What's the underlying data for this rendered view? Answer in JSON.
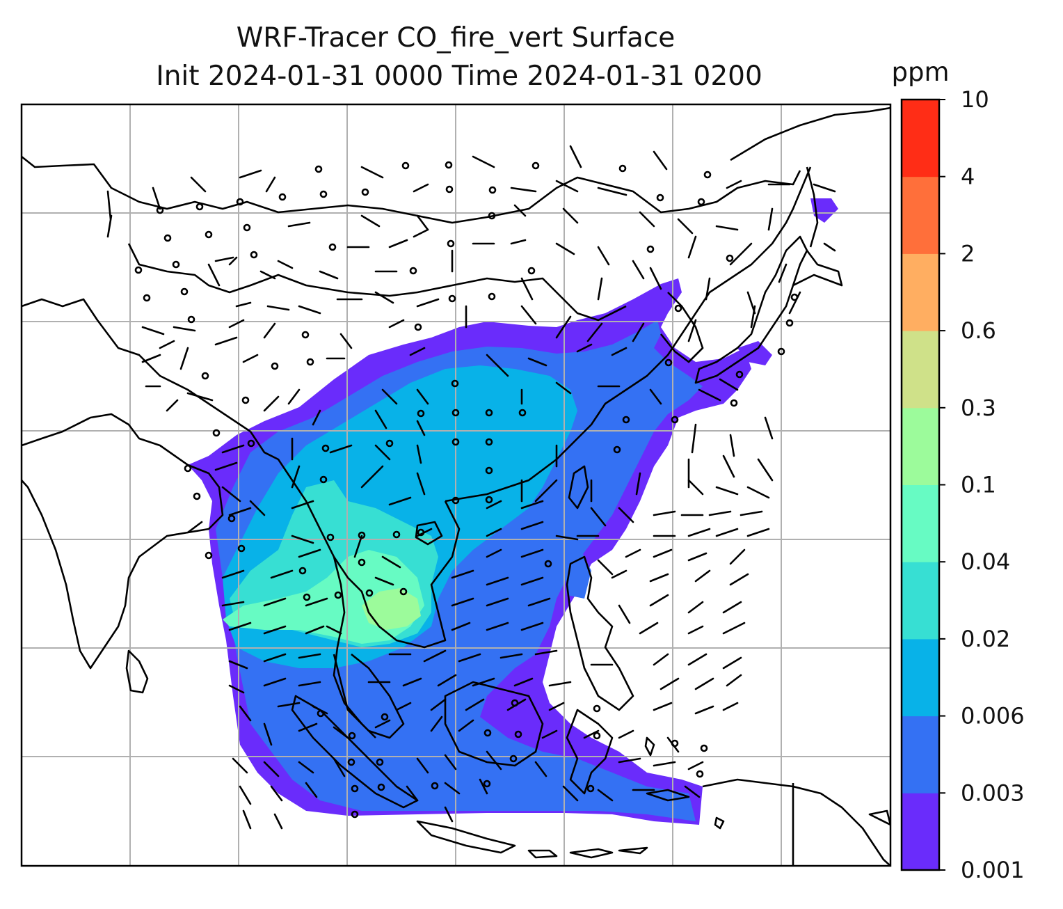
{
  "title": {
    "line1": "WRF-Tracer CO_fire_vert Surface",
    "line2": "Init 2024-01-31 0000 Time 2024-01-31 0200"
  },
  "colorbar": {
    "unit": "ppm",
    "levels": [
      "0.001",
      "0.003",
      "0.006",
      "0.02",
      "0.04",
      "0.1",
      "0.3",
      "0.6",
      "2",
      "4",
      "10"
    ],
    "colors": [
      "#6a2cfb",
      "#3471f3",
      "#08b2e8",
      "#37dfd3",
      "#67fbc3",
      "#9cfb9b",
      "#cfe189",
      "#ffae61",
      "#ff6f3a",
      "#ff2d16"
    ]
  },
  "map": {
    "region": "South and Southeast Asia",
    "background_color": "#ffffff",
    "coastline_color": "#000000",
    "gridline_color": "#b0b0b0",
    "wind_barb_color": "#000000"
  }
}
